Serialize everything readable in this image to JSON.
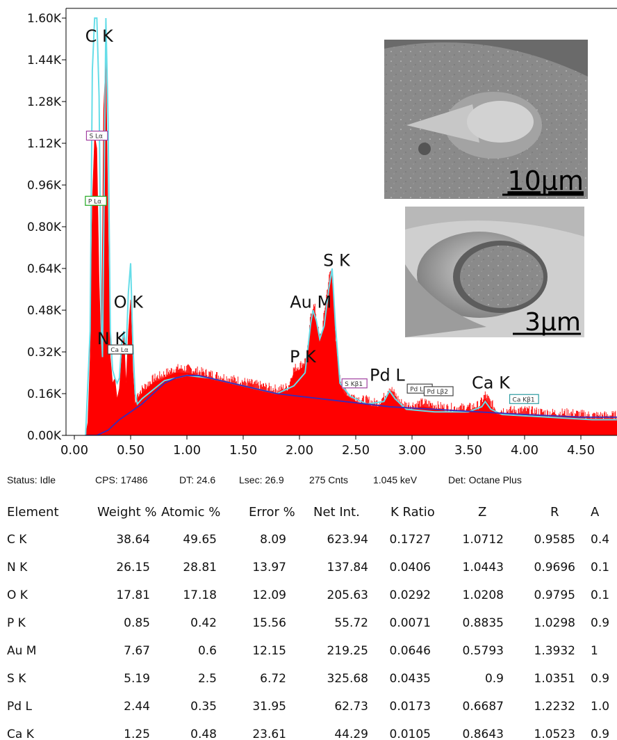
{
  "chart_data": {
    "type": "area",
    "ylim": [
      0,
      1.6
    ],
    "xlim": [
      0,
      5
    ],
    "y_ticks": [
      "0.00K",
      "0.16K",
      "0.32K",
      "0.48K",
      "0.64K",
      "0.80K",
      "0.96K",
      "1.12K",
      "1.28K",
      "1.44K",
      "1.60K"
    ],
    "x_ticks": [
      "0.00",
      "0.50",
      "1.00",
      "1.50",
      "2.00",
      "2.50",
      "3.00",
      "3.50",
      "4.00",
      "4.50"
    ],
    "grid": false,
    "series": [
      {
        "role": "measured spectrum (filled)",
        "color": "#ff0000",
        "x": [
          0.1,
          0.12,
          0.14,
          0.16,
          0.18,
          0.2,
          0.22,
          0.24,
          0.26,
          0.28,
          0.3,
          0.32,
          0.34,
          0.36,
          0.38,
          0.4,
          0.42,
          0.44,
          0.46,
          0.48,
          0.5,
          0.52,
          0.54,
          0.56,
          0.6,
          0.7,
          0.8,
          0.9,
          1.0,
          1.1,
          1.2,
          1.3,
          1.4,
          1.5,
          1.6,
          1.7,
          1.8,
          1.9,
          1.95,
          2.0,
          2.05,
          2.08,
          2.1,
          2.12,
          2.14,
          2.16,
          2.18,
          2.2,
          2.22,
          2.24,
          2.26,
          2.28,
          2.3,
          2.32,
          2.36,
          2.4,
          2.45,
          2.5,
          2.55,
          2.6,
          2.65,
          2.7,
          2.75,
          2.8,
          2.85,
          2.9,
          2.95,
          3.0,
          3.1,
          3.2,
          3.3,
          3.4,
          3.5,
          3.6,
          3.65,
          3.7,
          3.75,
          3.8,
          3.9,
          4.0,
          4.2,
          4.4,
          4.6,
          4.8,
          4.98
        ],
        "y": [
          0.0,
          0.05,
          0.3,
          0.9,
          1.15,
          1.1,
          0.6,
          0.3,
          1.25,
          1.45,
          0.8,
          0.3,
          0.2,
          0.22,
          0.14,
          0.18,
          0.3,
          0.38,
          0.2,
          0.4,
          0.52,
          0.25,
          0.12,
          0.14,
          0.16,
          0.2,
          0.22,
          0.24,
          0.24,
          0.23,
          0.22,
          0.21,
          0.2,
          0.19,
          0.18,
          0.17,
          0.16,
          0.17,
          0.24,
          0.25,
          0.27,
          0.33,
          0.45,
          0.48,
          0.47,
          0.4,
          0.36,
          0.38,
          0.45,
          0.52,
          0.58,
          0.62,
          0.55,
          0.35,
          0.2,
          0.16,
          0.14,
          0.13,
          0.12,
          0.12,
          0.11,
          0.11,
          0.13,
          0.17,
          0.14,
          0.11,
          0.1,
          0.1,
          0.11,
          0.1,
          0.09,
          0.09,
          0.09,
          0.1,
          0.14,
          0.11,
          0.08,
          0.08,
          0.08,
          0.08,
          0.07,
          0.07,
          0.06,
          0.06,
          0.06
        ]
      },
      {
        "role": "fit",
        "color": "#66dde8",
        "x": [
          0.1,
          0.14,
          0.16,
          0.18,
          0.2,
          0.22,
          0.24,
          0.25,
          0.28,
          0.3,
          0.32,
          0.34,
          0.36,
          0.38,
          0.4,
          0.42,
          0.44,
          0.46,
          0.48,
          0.5,
          0.52,
          0.54,
          0.56,
          0.6,
          0.8,
          1.0,
          1.2,
          1.5,
          1.8,
          1.95,
          2.05,
          2.1,
          2.12,
          2.15,
          2.18,
          2.22,
          2.26,
          2.29,
          2.32,
          2.36,
          2.45,
          2.6,
          2.75,
          2.8,
          2.85,
          2.95,
          3.2,
          3.5,
          3.62,
          3.65,
          3.7,
          3.8,
          4.2,
          4.6,
          4.98
        ],
        "y": [
          0.0,
          0.4,
          1.4,
          1.6,
          1.6,
          1.3,
          0.4,
          0.3,
          1.6,
          1.2,
          0.4,
          0.25,
          0.22,
          0.2,
          0.22,
          0.35,
          0.4,
          0.32,
          0.55,
          0.66,
          0.35,
          0.16,
          0.12,
          0.14,
          0.21,
          0.23,
          0.22,
          0.19,
          0.16,
          0.19,
          0.24,
          0.43,
          0.48,
          0.44,
          0.37,
          0.42,
          0.56,
          0.64,
          0.42,
          0.2,
          0.15,
          0.12,
          0.13,
          0.17,
          0.14,
          0.1,
          0.09,
          0.09,
          0.11,
          0.13,
          0.1,
          0.08,
          0.07,
          0.06,
          0.06
        ]
      },
      {
        "role": "background",
        "color": "#3a2bb8",
        "x": [
          0.1,
          0.2,
          0.3,
          0.4,
          0.5,
          0.6,
          0.7,
          0.8,
          0.9,
          1.0,
          1.1,
          1.2,
          1.4,
          1.6,
          1.8,
          2.0,
          2.4,
          2.8,
          3.2,
          3.6,
          4.0,
          4.5,
          4.98
        ],
        "y": [
          0.0,
          0.0,
          0.02,
          0.06,
          0.09,
          0.12,
          0.16,
          0.2,
          0.22,
          0.23,
          0.23,
          0.22,
          0.2,
          0.18,
          0.16,
          0.15,
          0.13,
          0.11,
          0.1,
          0.09,
          0.08,
          0.07,
          0.07
        ]
      }
    ],
    "annotations": [
      {
        "text": "C K",
        "x": 0.22,
        "y": 1.51
      },
      {
        "text": "O K",
        "x": 0.48,
        "y": 0.49
      },
      {
        "text": "N K",
        "x": 0.33,
        "y": 0.35
      },
      {
        "text": "Au M",
        "x": 2.1,
        "y": 0.49
      },
      {
        "text": "S K",
        "x": 2.33,
        "y": 0.65
      },
      {
        "text": "P K",
        "x": 2.03,
        "y": 0.28
      },
      {
        "text": "Pd L",
        "x": 2.78,
        "y": 0.21
      },
      {
        "text": "Ca K",
        "x": 3.7,
        "y": 0.18
      }
    ],
    "marker_labels": [
      {
        "text": "S Lα",
        "x": 0.12,
        "y": 1.14,
        "color": "#a040a0"
      },
      {
        "text": "P Lα",
        "x": 0.11,
        "y": 0.89,
        "color": "#22aa22"
      },
      {
        "text": "Ca Lα",
        "x": 0.31,
        "y": 0.32,
        "color": "#444444"
      },
      {
        "text": "S Kβ1",
        "x": 2.39,
        "y": 0.19,
        "color": "#a040a0"
      },
      {
        "text": "Pd Lβ",
        "x": 2.97,
        "y": 0.17,
        "color": "#444444"
      },
      {
        "text": "Pd Lβ2",
        "x": 3.12,
        "y": 0.16,
        "color": "#444444"
      },
      {
        "text": "Ca Kβ1",
        "x": 3.88,
        "y": 0.13,
        "color": "#2a9aa0"
      }
    ]
  },
  "insets": {
    "top": {
      "scale_label": "10µm"
    },
    "bottom": {
      "scale_label": "3µm"
    }
  },
  "status_bar": {
    "status": "Status: Idle",
    "cps": "CPS: 17486",
    "dt": "DT: 24.6",
    "lsec": "Lsec: 26.9",
    "cnts": "275 Cnts",
    "kev": "1.045 keV",
    "det": "Det: Octane Plus"
  },
  "quant_table": {
    "headers": [
      "Element",
      "Weight %",
      "Atomic %",
      "Error %",
      "Net Int.",
      "K Ratio",
      "Z",
      "R",
      "A"
    ],
    "rows": [
      [
        "C K",
        "38.64",
        "49.65",
        "8.09",
        "623.94",
        "0.1727",
        "1.0712",
        "0.9585",
        "0.4"
      ],
      [
        "N K",
        "26.15",
        "28.81",
        "13.97",
        "137.84",
        "0.0406",
        "1.0443",
        "0.9696",
        "0.1"
      ],
      [
        "O K",
        "17.81",
        "17.18",
        "12.09",
        "205.63",
        "0.0292",
        "1.0208",
        "0.9795",
        "0.1"
      ],
      [
        "P K",
        "0.85",
        "0.42",
        "15.56",
        "55.72",
        "0.0071",
        "0.8835",
        "1.0298",
        "0.9"
      ],
      [
        "Au M",
        "7.67",
        "0.6",
        "12.15",
        "219.25",
        "0.0646",
        "0.5793",
        "1.3932",
        "1"
      ],
      [
        "S K",
        "5.19",
        "2.5",
        "6.72",
        "325.68",
        "0.0435",
        "0.9",
        "1.0351",
        "0.9"
      ],
      [
        "Pd L",
        "2.44",
        "0.35",
        "31.95",
        "62.73",
        "0.0173",
        "0.6687",
        "1.2232",
        "1.0"
      ],
      [
        "Ca K",
        "1.25",
        "0.48",
        "23.61",
        "44.29",
        "0.0105",
        "0.8643",
        "1.0523",
        "0.9"
      ]
    ]
  }
}
